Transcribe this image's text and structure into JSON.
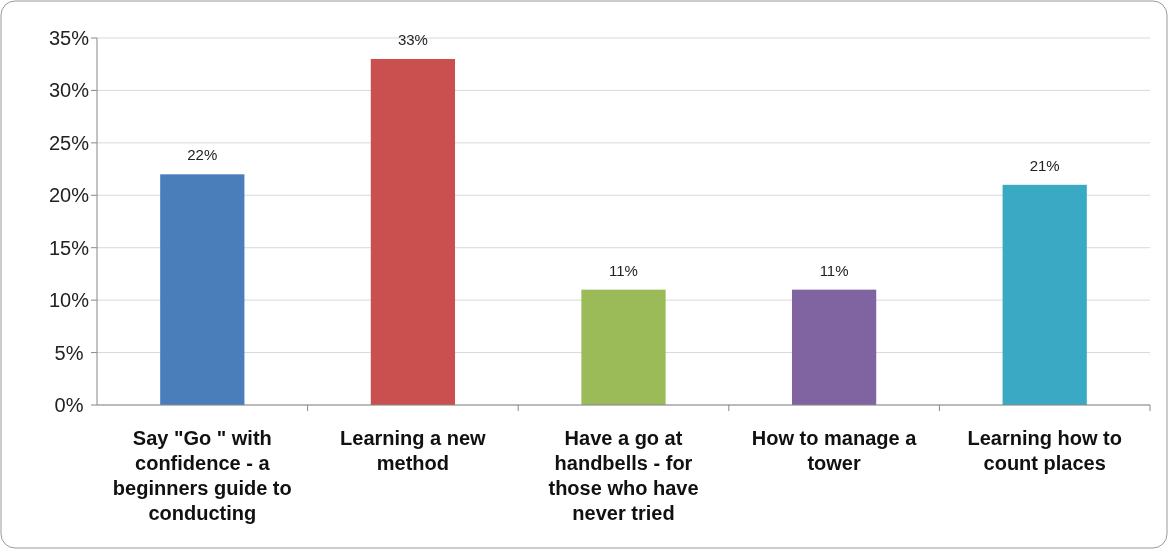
{
  "chart_data": {
    "type": "bar",
    "categories": [
      "Say \"Go \" with confidence - a beginners guide to conducting",
      "Learning a new method",
      "Have a go at handbells - for those who have never tried",
      "How to manage a tower",
      "Learning how to count places"
    ],
    "values": [
      22,
      33,
      11,
      11,
      21
    ],
    "colors": [
      "#4a7ebb",
      "#c9504e",
      "#9bbb59",
      "#8064a2",
      "#3aaac4"
    ],
    "value_labels": [
      "22%",
      "33%",
      "11%",
      "11%",
      "21%"
    ],
    "ylim": [
      0,
      35
    ],
    "yticks": [
      {
        "value": 0,
        "label": "0%"
      },
      {
        "value": 5,
        "label": "5%"
      },
      {
        "value": 10,
        "label": "10%"
      },
      {
        "value": 15,
        "label": "15%"
      },
      {
        "value": 20,
        "label": "20%"
      },
      {
        "value": 25,
        "label": "25%"
      },
      {
        "value": 30,
        "label": "30%"
      },
      {
        "value": 35,
        "label": "35%"
      }
    ],
    "grid": "y"
  }
}
